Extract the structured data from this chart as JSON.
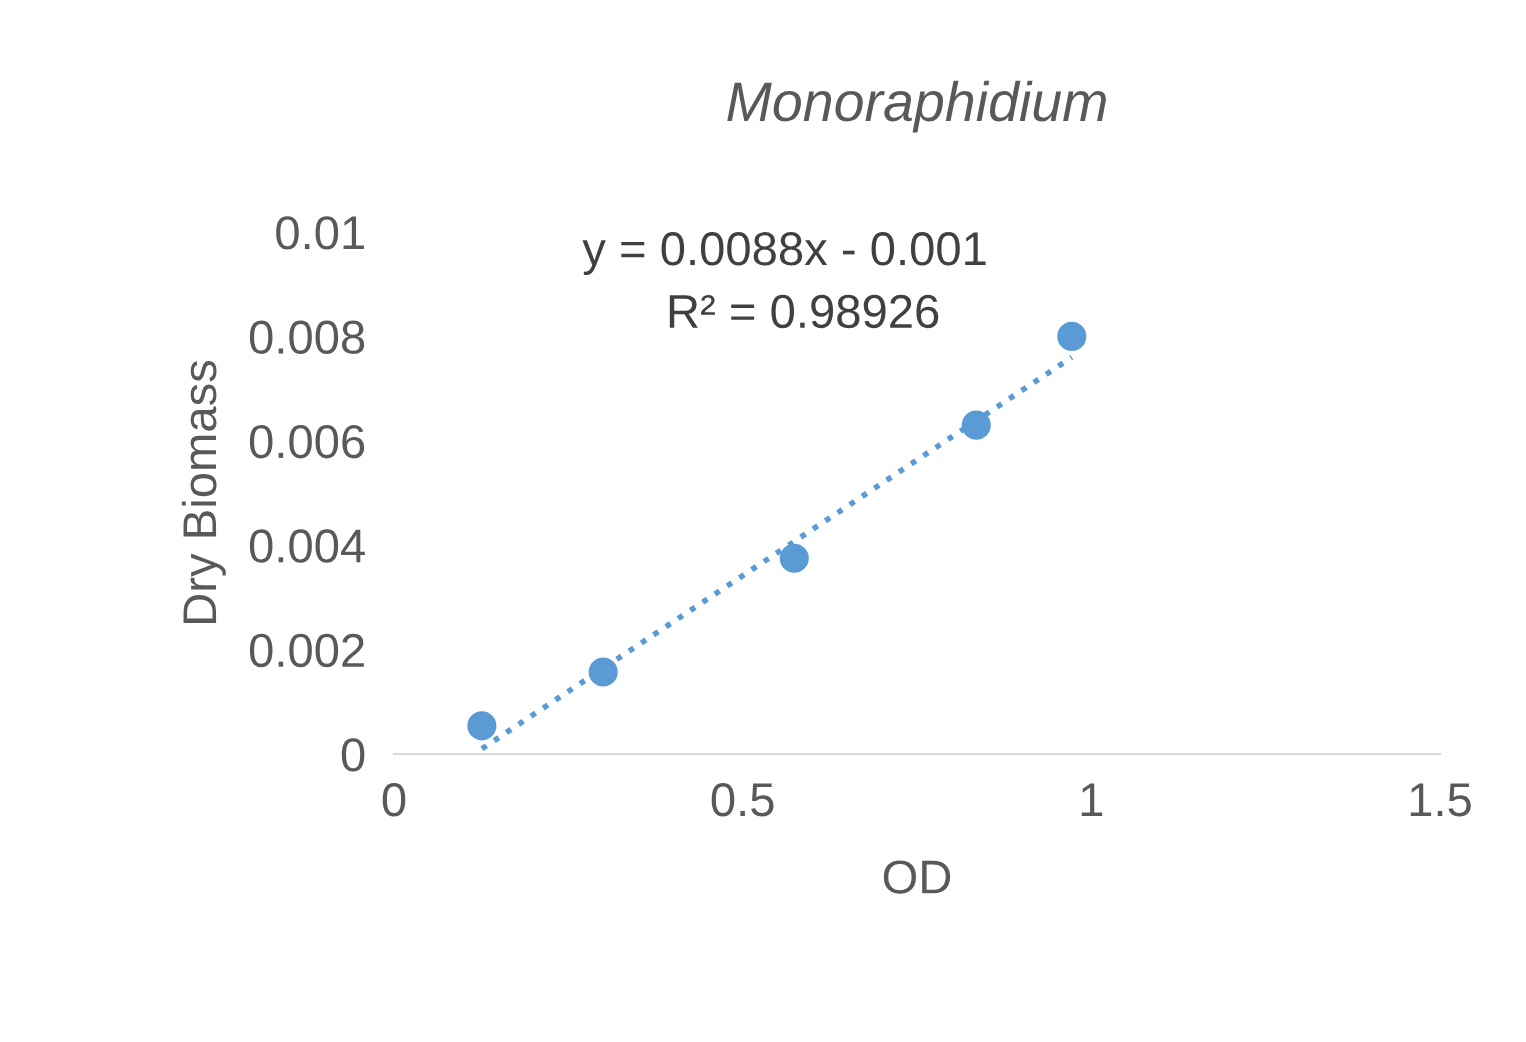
{
  "chart_data": {
    "type": "scatter",
    "title": "Monoraphidium",
    "xlabel": "OD",
    "ylabel": "Dry Biomass",
    "series": [
      {
        "type": "scatter",
        "color": "#5b9bd5",
        "x": [
          0.126,
          0.3,
          0.574,
          0.835,
          0.972
        ],
        "values": [
          0.00054,
          0.00157,
          0.00375,
          0.0063,
          0.008
        ],
        "marker": "circle"
      },
      {
        "type": "line",
        "color": "#5b9bd5",
        "x": [
          0.126,
          0.972
        ],
        "values": [
          0.0001,
          0.0076
        ],
        "line_style": "dotted"
      }
    ],
    "annotations": [
      "y = 0.0088x - 0.001",
      "R² = 0.98926"
    ],
    "xlim": [
      0,
      1.5
    ],
    "xticks": [
      0,
      0.5,
      1,
      1.5
    ],
    "ylim": [
      0,
      0.01
    ],
    "yticks": [
      0,
      0.002,
      0.004,
      0.006,
      0.008,
      0.01
    ],
    "grid": false,
    "legend": false
  }
}
